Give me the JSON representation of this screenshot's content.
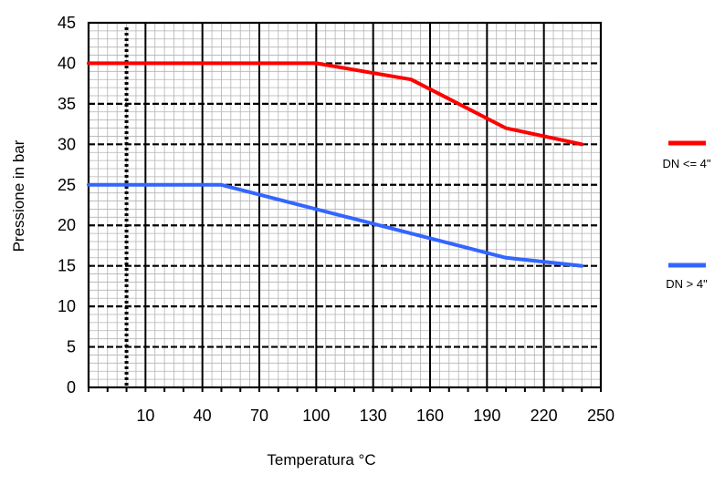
{
  "chart_data": {
    "type": "line",
    "title": "",
    "xlabel": "Temperatura °C",
    "ylabel": "Pressione in bar",
    "x_tick_labels": [
      "10",
      "40",
      "70",
      "100",
      "130",
      "160",
      "190",
      "220",
      "250"
    ],
    "y_tick_labels": [
      "0",
      "5",
      "10",
      "15",
      "20",
      "25",
      "30",
      "35",
      "40",
      "45"
    ],
    "xlim": [
      -20,
      250
    ],
    "ylim": [
      0,
      45
    ],
    "grid": true,
    "legend_position": "right",
    "series": [
      {
        "name": "DN <= 4\"",
        "color": "#ff0000",
        "x": [
          -20,
          100,
          150,
          200,
          240
        ],
        "y": [
          40,
          40,
          38,
          32,
          30
        ]
      },
      {
        "name": "DN > 4\"",
        "color": "#3366ff",
        "x": [
          -20,
          50,
          200,
          240
        ],
        "y": [
          25,
          25,
          16,
          15
        ]
      }
    ]
  }
}
